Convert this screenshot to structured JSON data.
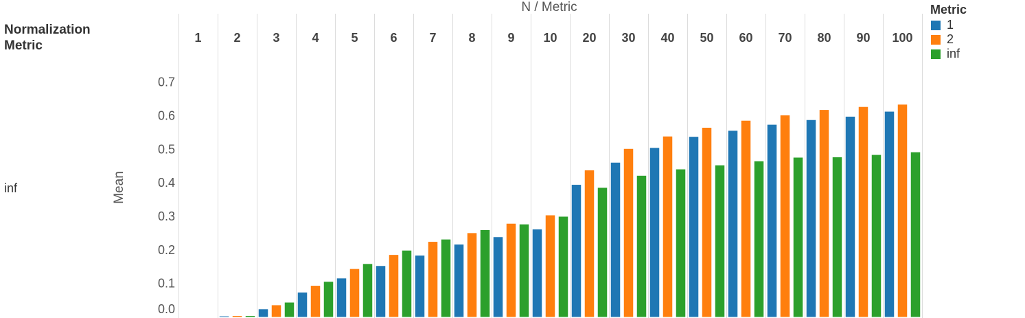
{
  "header": {
    "title": "N  /  Metric",
    "row_header": "Normalization Metric",
    "row_value": "inf"
  },
  "legend": {
    "title": "Metric",
    "items": [
      {
        "label": "1",
        "color": "#1f77b4"
      },
      {
        "label": "2",
        "color": "#ff7f0e"
      },
      {
        "label": "inf",
        "color": "#2ca02c"
      }
    ]
  },
  "chart_data": {
    "type": "bar",
    "title": "N  /  Metric",
    "ylabel": "Mean",
    "ylim": [
      0,
      0.75
    ],
    "yticks": [
      0.0,
      0.1,
      0.2,
      0.3,
      0.4,
      0.5,
      0.6,
      0.7
    ],
    "grid": "vertical column dividers",
    "legend_position": "top-right",
    "categories": [
      "1",
      "2",
      "3",
      "4",
      "5",
      "6",
      "7",
      "8",
      "9",
      "10",
      "20",
      "30",
      "40",
      "50",
      "60",
      "70",
      "80",
      "90",
      "100"
    ],
    "series": [
      {
        "name": "1",
        "color": "#1f77b4",
        "values": [
          0.0,
          0.002,
          0.023,
          0.073,
          0.115,
          0.152,
          0.183,
          0.216,
          0.238,
          0.261,
          0.394,
          0.46,
          0.504,
          0.537,
          0.555,
          0.573,
          0.587,
          0.597,
          0.612
        ]
      },
      {
        "name": "2",
        "color": "#ff7f0e",
        "values": [
          0.0,
          0.003,
          0.035,
          0.093,
          0.143,
          0.185,
          0.224,
          0.25,
          0.278,
          0.303,
          0.437,
          0.501,
          0.538,
          0.564,
          0.585,
          0.601,
          0.617,
          0.626,
          0.633
        ]
      },
      {
        "name": "inf",
        "color": "#2ca02c",
        "values": [
          0.0,
          0.003,
          0.043,
          0.105,
          0.158,
          0.198,
          0.231,
          0.259,
          0.276,
          0.299,
          0.385,
          0.421,
          0.44,
          0.452,
          0.464,
          0.475,
          0.476,
          0.483,
          0.491
        ]
      }
    ]
  }
}
